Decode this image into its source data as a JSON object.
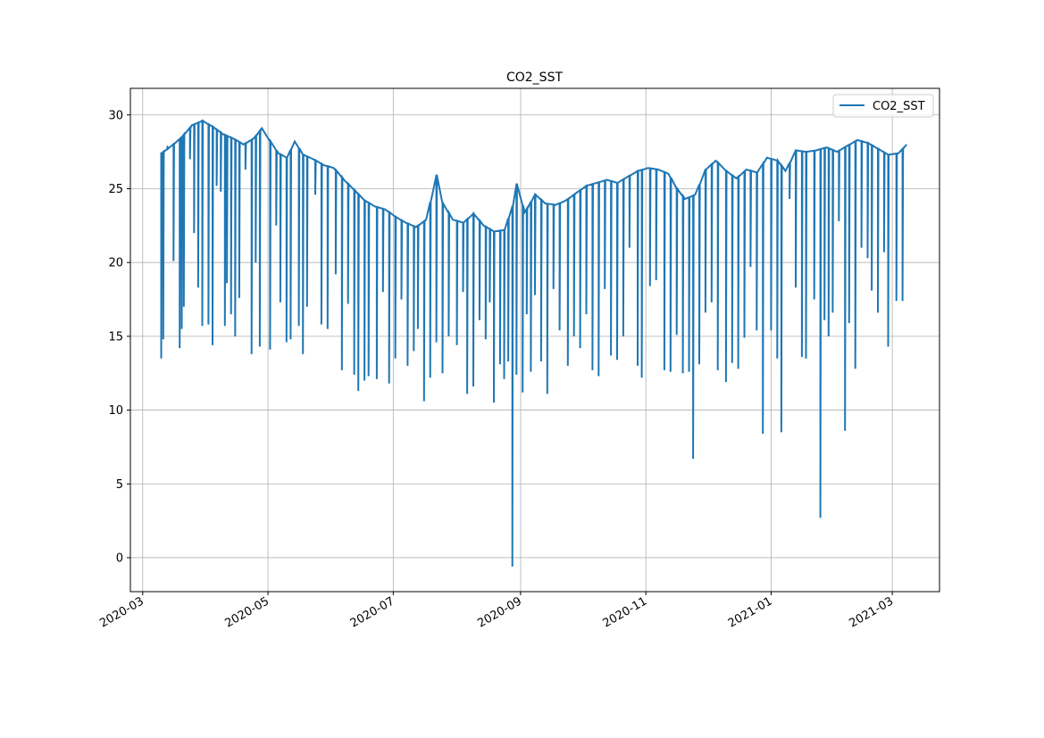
{
  "chart_data": {
    "type": "line",
    "title": "CO2_SST",
    "xlabel": "",
    "ylabel": "",
    "x_axis": {
      "kind": "date",
      "range": [
        "2020-02-24",
        "2021-03-24"
      ],
      "ticks": [
        "2020-03-01",
        "2020-05-01",
        "2020-07-01",
        "2020-09-01",
        "2020-11-01",
        "2021-01-01",
        "2021-03-01"
      ],
      "tick_labels": [
        "2020-03",
        "2020-05",
        "2020-07",
        "2020-09",
        "2020-11",
        "2021-01",
        "2021-03"
      ]
    },
    "y_axis": {
      "range": [
        -2.3,
        31.8
      ],
      "ticks": [
        0,
        5,
        10,
        15,
        20,
        25,
        30
      ],
      "tick_labels": [
        "0",
        "5",
        "10",
        "15",
        "20",
        "25",
        "30"
      ]
    },
    "grid": true,
    "legend": {
      "position": "top-right",
      "entries": [
        "CO2_SST"
      ]
    },
    "series": [
      {
        "name": "CO2_SST",
        "color": "#1f77b4",
        "baseline": [
          [
            "2020-03-10",
            27.4
          ],
          [
            "2020-03-15",
            27.9
          ],
          [
            "2020-03-20",
            28.5
          ],
          [
            "2020-03-25",
            29.3
          ],
          [
            "2020-03-30",
            29.6
          ],
          [
            "2020-04-04",
            29.2
          ],
          [
            "2020-04-09",
            28.7
          ],
          [
            "2020-04-14",
            28.4
          ],
          [
            "2020-04-19",
            28.0
          ],
          [
            "2020-04-24",
            28.4
          ],
          [
            "2020-04-28",
            29.1
          ],
          [
            "2020-05-02",
            28.2
          ],
          [
            "2020-05-06",
            27.4
          ],
          [
            "2020-05-10",
            27.1
          ],
          [
            "2020-05-14",
            28.2
          ],
          [
            "2020-05-18",
            27.3
          ],
          [
            "2020-05-23",
            27.0
          ],
          [
            "2020-05-28",
            26.6
          ],
          [
            "2020-06-02",
            26.4
          ],
          [
            "2020-06-07",
            25.6
          ],
          [
            "2020-06-12",
            24.9
          ],
          [
            "2020-06-17",
            24.2
          ],
          [
            "2020-06-22",
            23.8
          ],
          [
            "2020-06-27",
            23.6
          ],
          [
            "2020-07-02",
            23.1
          ],
          [
            "2020-07-07",
            22.7
          ],
          [
            "2020-07-12",
            22.4
          ],
          [
            "2020-07-17",
            22.9
          ],
          [
            "2020-07-22",
            25.9
          ],
          [
            "2020-07-25",
            24.0
          ],
          [
            "2020-07-30",
            22.9
          ],
          [
            "2020-08-04",
            22.7
          ],
          [
            "2020-08-09",
            23.3
          ],
          [
            "2020-08-14",
            22.5
          ],
          [
            "2020-08-19",
            22.1
          ],
          [
            "2020-08-24",
            22.2
          ],
          [
            "2020-08-28",
            23.8
          ],
          [
            "2020-08-30",
            25.3
          ],
          [
            "2020-09-03",
            23.4
          ],
          [
            "2020-09-08",
            24.6
          ],
          [
            "2020-09-13",
            24.0
          ],
          [
            "2020-09-18",
            23.9
          ],
          [
            "2020-09-23",
            24.2
          ],
          [
            "2020-09-28",
            24.7
          ],
          [
            "2020-10-03",
            25.2
          ],
          [
            "2020-10-08",
            25.4
          ],
          [
            "2020-10-13",
            25.6
          ],
          [
            "2020-10-18",
            25.4
          ],
          [
            "2020-10-23",
            25.8
          ],
          [
            "2020-10-28",
            26.2
          ],
          [
            "2020-11-02",
            26.4
          ],
          [
            "2020-11-07",
            26.3
          ],
          [
            "2020-11-12",
            26.0
          ],
          [
            "2020-11-16",
            25.0
          ],
          [
            "2020-11-20",
            24.3
          ],
          [
            "2020-11-25",
            24.6
          ],
          [
            "2020-11-30",
            26.3
          ],
          [
            "2020-12-05",
            26.9
          ],
          [
            "2020-12-10",
            26.2
          ],
          [
            "2020-12-15",
            25.7
          ],
          [
            "2020-12-20",
            26.3
          ],
          [
            "2020-12-25",
            26.1
          ],
          [
            "2020-12-30",
            27.1
          ],
          [
            "2021-01-04",
            26.9
          ],
          [
            "2021-01-08",
            26.2
          ],
          [
            "2021-01-13",
            27.6
          ],
          [
            "2021-01-18",
            27.5
          ],
          [
            "2021-01-23",
            27.6
          ],
          [
            "2021-01-28",
            27.8
          ],
          [
            "2021-02-02",
            27.5
          ],
          [
            "2021-02-07",
            27.9
          ],
          [
            "2021-02-12",
            28.3
          ],
          [
            "2021-02-17",
            28.1
          ],
          [
            "2021-02-22",
            27.7
          ],
          [
            "2021-02-27",
            27.3
          ],
          [
            "2021-03-04",
            27.4
          ],
          [
            "2021-03-08",
            28.0
          ]
        ],
        "drops": [
          [
            "2020-03-10",
            13.5
          ],
          [
            "2020-03-11",
            14.8
          ],
          [
            "2020-03-13",
            27.9
          ],
          [
            "2020-03-16",
            20.1
          ],
          [
            "2020-03-19",
            14.2
          ],
          [
            "2020-03-20",
            15.5
          ],
          [
            "2020-03-21",
            17.0
          ],
          [
            "2020-03-24",
            27.0
          ],
          [
            "2020-03-26",
            22.0
          ],
          [
            "2020-03-28",
            18.3
          ],
          [
            "2020-03-30",
            15.7
          ],
          [
            "2020-04-02",
            15.8
          ],
          [
            "2020-04-04",
            14.4
          ],
          [
            "2020-04-06",
            25.2
          ],
          [
            "2020-04-08",
            24.8
          ],
          [
            "2020-04-10",
            15.7
          ],
          [
            "2020-04-11",
            18.6
          ],
          [
            "2020-04-13",
            16.5
          ],
          [
            "2020-04-15",
            15.0
          ],
          [
            "2020-04-17",
            17.6
          ],
          [
            "2020-04-20",
            26.3
          ],
          [
            "2020-04-23",
            13.8
          ],
          [
            "2020-04-25",
            20.0
          ],
          [
            "2020-04-27",
            14.3
          ],
          [
            "2020-05-02",
            14.1
          ],
          [
            "2020-05-05",
            22.5
          ],
          [
            "2020-05-07",
            17.3
          ],
          [
            "2020-05-10",
            14.6
          ],
          [
            "2020-05-12",
            14.8
          ],
          [
            "2020-05-16",
            15.7
          ],
          [
            "2020-05-18",
            13.8
          ],
          [
            "2020-05-20",
            17.0
          ],
          [
            "2020-05-24",
            24.6
          ],
          [
            "2020-05-27",
            15.8
          ],
          [
            "2020-05-30",
            15.5
          ],
          [
            "2020-06-03",
            19.2
          ],
          [
            "2020-06-06",
            12.7
          ],
          [
            "2020-06-09",
            17.2
          ],
          [
            "2020-06-12",
            12.4
          ],
          [
            "2020-06-14",
            11.3
          ],
          [
            "2020-06-17",
            12.0
          ],
          [
            "2020-06-19",
            12.3
          ],
          [
            "2020-06-23",
            12.1
          ],
          [
            "2020-06-26",
            18.0
          ],
          [
            "2020-06-29",
            11.8
          ],
          [
            "2020-07-02",
            13.5
          ],
          [
            "2020-07-05",
            17.5
          ],
          [
            "2020-07-08",
            13.0
          ],
          [
            "2020-07-11",
            14.0
          ],
          [
            "2020-07-13",
            15.5
          ],
          [
            "2020-07-16",
            10.6
          ],
          [
            "2020-07-19",
            12.2
          ],
          [
            "2020-07-22",
            14.6
          ],
          [
            "2020-07-25",
            12.5
          ],
          [
            "2020-07-28",
            15.0
          ],
          [
            "2020-08-01",
            14.4
          ],
          [
            "2020-08-04",
            18.0
          ],
          [
            "2020-08-06",
            11.1
          ],
          [
            "2020-08-09",
            11.6
          ],
          [
            "2020-08-12",
            16.1
          ],
          [
            "2020-08-15",
            14.8
          ],
          [
            "2020-08-17",
            17.3
          ],
          [
            "2020-08-19",
            10.5
          ],
          [
            "2020-08-22",
            13.1
          ],
          [
            "2020-08-24",
            12.1
          ],
          [
            "2020-08-26",
            13.3
          ],
          [
            "2020-08-28",
            -0.6
          ],
          [
            "2020-08-30",
            12.4
          ],
          [
            "2020-09-02",
            11.2
          ],
          [
            "2020-09-04",
            16.5
          ],
          [
            "2020-09-06",
            12.6
          ],
          [
            "2020-09-08",
            17.8
          ],
          [
            "2020-09-11",
            13.3
          ],
          [
            "2020-09-14",
            11.1
          ],
          [
            "2020-09-17",
            18.2
          ],
          [
            "2020-09-20",
            15.4
          ],
          [
            "2020-09-24",
            13.0
          ],
          [
            "2020-09-27",
            15.0
          ],
          [
            "2020-09-30",
            14.2
          ],
          [
            "2020-10-03",
            16.5
          ],
          [
            "2020-10-06",
            12.7
          ],
          [
            "2020-10-09",
            12.3
          ],
          [
            "2020-10-12",
            18.2
          ],
          [
            "2020-10-15",
            13.7
          ],
          [
            "2020-10-18",
            13.4
          ],
          [
            "2020-10-21",
            15.0
          ],
          [
            "2020-10-24",
            21.0
          ],
          [
            "2020-10-28",
            13.0
          ],
          [
            "2020-10-30",
            12.2
          ],
          [
            "2020-11-03",
            18.4
          ],
          [
            "2020-11-06",
            18.8
          ],
          [
            "2020-11-10",
            12.7
          ],
          [
            "2020-11-13",
            12.6
          ],
          [
            "2020-11-16",
            15.1
          ],
          [
            "2020-11-19",
            12.5
          ],
          [
            "2020-11-22",
            12.6
          ],
          [
            "2020-11-24",
            6.7
          ],
          [
            "2020-11-27",
            13.1
          ],
          [
            "2020-11-30",
            16.6
          ],
          [
            "2020-12-03",
            17.3
          ],
          [
            "2020-12-06",
            12.7
          ],
          [
            "2020-12-10",
            11.9
          ],
          [
            "2020-12-13",
            13.2
          ],
          [
            "2020-12-16",
            12.8
          ],
          [
            "2020-12-19",
            14.9
          ],
          [
            "2020-12-22",
            19.7
          ],
          [
            "2020-12-25",
            15.4
          ],
          [
            "2020-12-28",
            8.4
          ],
          [
            "2021-01-01",
            15.4
          ],
          [
            "2021-01-04",
            13.5
          ],
          [
            "2021-01-06",
            8.5
          ],
          [
            "2021-01-10",
            24.3
          ],
          [
            "2021-01-13",
            18.3
          ],
          [
            "2021-01-16",
            13.6
          ],
          [
            "2021-01-18",
            13.5
          ],
          [
            "2021-01-22",
            17.5
          ],
          [
            "2021-01-25",
            2.7
          ],
          [
            "2021-01-27",
            16.1
          ],
          [
            "2021-01-29",
            15.0
          ],
          [
            "2021-01-31",
            16.6
          ],
          [
            "2021-02-03",
            22.8
          ],
          [
            "2021-02-06",
            8.6
          ],
          [
            "2021-02-08",
            15.9
          ],
          [
            "2021-02-11",
            12.8
          ],
          [
            "2021-02-14",
            21.0
          ],
          [
            "2021-02-17",
            20.3
          ],
          [
            "2021-02-19",
            18.1
          ],
          [
            "2021-02-22",
            16.6
          ],
          [
            "2021-02-25",
            20.7
          ],
          [
            "2021-02-27",
            14.3
          ],
          [
            "2021-03-03",
            17.4
          ],
          [
            "2021-03-06",
            17.4
          ]
        ]
      }
    ]
  }
}
